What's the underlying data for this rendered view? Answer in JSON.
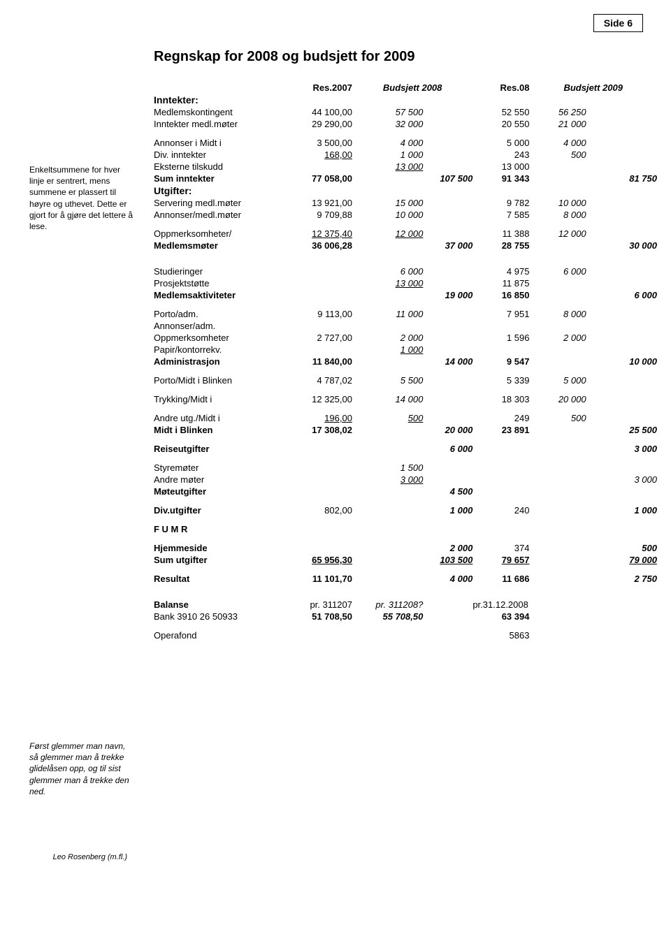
{
  "page_label": "Side 6",
  "title": "Regnskap for 2008 og budsjett for 2009",
  "margin_note1": "Enkeltsummene for hver linje er sentrert, mens summene er plassert til høyre og uthevet. Dette er gjort for å gjøre det lettere å lese.",
  "margin_note2": "Først glemmer man navn, så glemmer man å trekke glidelåsen opp, og til sist glemmer man å trekke den ned.",
  "margin_signature": "Leo Rosenberg (m.fl.)",
  "headers": {
    "h1": "Res.2007",
    "h2": "Budsjett 2008",
    "h3": "Res.08",
    "h4": "Budsjett 2009"
  },
  "sec_inntekter": "Inntekter:",
  "sec_utgifter": "Utgifter:",
  "rows": {
    "medlkont": {
      "label": "Medlemskontingent",
      "c1": "44 100,00",
      "c2": "57 500",
      "c4": "52 550",
      "c5": "56 250"
    },
    "inntmed": {
      "label": "Inntekter medl.møter",
      "c1": "29 290,00",
      "c2": "32 000",
      "c4": "20 550",
      "c5": "21 000"
    },
    "annmidt": {
      "label": "Annonser i Midt i",
      "c1": "3 500,00",
      "c2": "4 000",
      "c4": "5 000",
      "c5": "4 000"
    },
    "divinn": {
      "label": "Div. inntekter",
      "c1": "168,00",
      "c2": "1 000",
      "c4": "243",
      "c5": "500"
    },
    "ekst": {
      "label": "Eksterne tilskudd",
      "c2": "13 000",
      "c4": "13 000"
    },
    "suminn": {
      "label": "Sum inntekter",
      "c1": "77 058,00",
      "c3": "107 500",
      "c4": "91 343",
      "c6": "81 750"
    },
    "serv": {
      "label": "Servering medl.møter",
      "c1": "13 921,00",
      "c2": "15 000",
      "c4": "9 782",
      "c5": "10 000"
    },
    "annmed": {
      "label": "Annonser/medl.møter",
      "c1": "9 709,88",
      "c2": "10 000",
      "c4": "7 585",
      "c5": "8 000"
    },
    "oppm": {
      "label": "Oppmerksomheter/",
      "c1": "12 375,40",
      "c2": "12 000",
      "c4": "11 388",
      "c5": "12 000"
    },
    "medlm": {
      "label": "Medlemsmøter",
      "c1": "36 006,28",
      "c3": "37 000",
      "c4": "28 755",
      "c6": "30 000"
    },
    "stud": {
      "label": "Studieringer",
      "c2": "6 000",
      "c4": "4 975",
      "c5": "6 000"
    },
    "prosj": {
      "label": "Prosjektstøtte",
      "c2": "13 000",
      "c4": "11 875"
    },
    "medakt": {
      "label": "Medlemsaktiviteter",
      "c3": "19 000",
      "c4": "16 850",
      "c6": "6 000"
    },
    "porto": {
      "label": "Porto/adm.",
      "c1": "9 113,00",
      "c2": "11 000",
      "c4": "7 951",
      "c5": "8 000"
    },
    "annadm": {
      "label": "Annonser/adm."
    },
    "oppm2": {
      "label": "Oppmerksomheter",
      "c1": "2 727,00",
      "c2": "2 000",
      "c4": "1 596",
      "c5": "2 000"
    },
    "papir": {
      "label": "Papir/kontorrekv.",
      "c2": "1 000"
    },
    "admin": {
      "label": "Administrasjon",
      "c1": "11 840,00",
      "c3": "14 000",
      "c4": "9 547",
      "c6": "10 000"
    },
    "pmb": {
      "label": "Porto/Midt i Blinken",
      "c1": "4 787,02",
      "c2": "5 500",
      "c4": "5 339",
      "c5": "5 000"
    },
    "trykk": {
      "label": "Trykking/Midt i",
      "c1": "12 325,00",
      "c2": "14 000",
      "c4": "18 303",
      "c5": "20 000"
    },
    "andreutg": {
      "label": "Andre utg./Midt i",
      "c1": "196,00",
      "c2": "500",
      "c4": "249",
      "c5": "500"
    },
    "mib": {
      "label": "Midt i Blinken",
      "c1": "17 308,02",
      "c3": "20 000",
      "c4": "23 891",
      "c6": "25 500"
    },
    "reise": {
      "label": "Reiseutgifter",
      "c3": "6 000",
      "c6": "3 000"
    },
    "styre": {
      "label": "Styremøter",
      "c2": "1 500"
    },
    "andrem": {
      "label": "Andre møter",
      "c2": "3 000",
      "c6": "3 000"
    },
    "mote": {
      "label": "Møteutgifter",
      "c3": "4 500"
    },
    "divutg": {
      "label": "Div.utgifter",
      "c1": "802,00",
      "c3": "1 000",
      "c4": "240",
      "c6": "1 000"
    },
    "fumr": {
      "label": "F U M R"
    },
    "hjem": {
      "label": "Hjemmeside",
      "c3": "2 000",
      "c4": "374",
      "c6": "500"
    },
    "sumutg": {
      "label": "Sum utgifter",
      "c1": "65 956,30",
      "c3": "103 500",
      "c4": "79 657",
      "c6": "79 000"
    },
    "res": {
      "label": "Resultat",
      "c1": "11 101,70",
      "c3": "4 000",
      "c4": "11 686",
      "c6": "2 750"
    },
    "bal": {
      "label": "Balanse",
      "c1": "pr. 311207",
      "c2": "pr. 311208?",
      "c4l": "pr.31.12.2008"
    },
    "bank": {
      "label": "Bank 3910 26 50933",
      "c1": "51 708,50",
      "c2": "55 708,50",
      "c4": "63 394"
    },
    "opera": {
      "label": "Operafond",
      "c4": "5863"
    }
  }
}
